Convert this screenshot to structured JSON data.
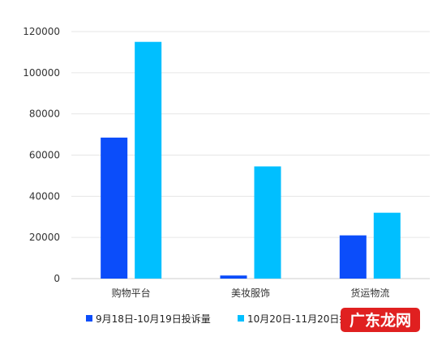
{
  "chart_data": {
    "type": "bar",
    "categories": [
      "购物平台",
      "美妆服饰",
      "货运物流"
    ],
    "series": [
      {
        "name": "9月18日-10月19日投诉量",
        "color": "#0b4dfa",
        "values": [
          68500,
          1500,
          21000
        ]
      },
      {
        "name": "10月20日-11月20日投诉量",
        "color": "#00bfff",
        "values": [
          115000,
          54500,
          32000
        ]
      }
    ],
    "yticks": [
      0,
      20000,
      40000,
      60000,
      80000,
      100000,
      120000
    ],
    "ylim": [
      0,
      120000
    ],
    "grid": true,
    "legend": "bottom",
    "title": "",
    "xlabel": "",
    "ylabel": ""
  },
  "watermark": {
    "text": "广东龙网",
    "color": "#e02020"
  }
}
